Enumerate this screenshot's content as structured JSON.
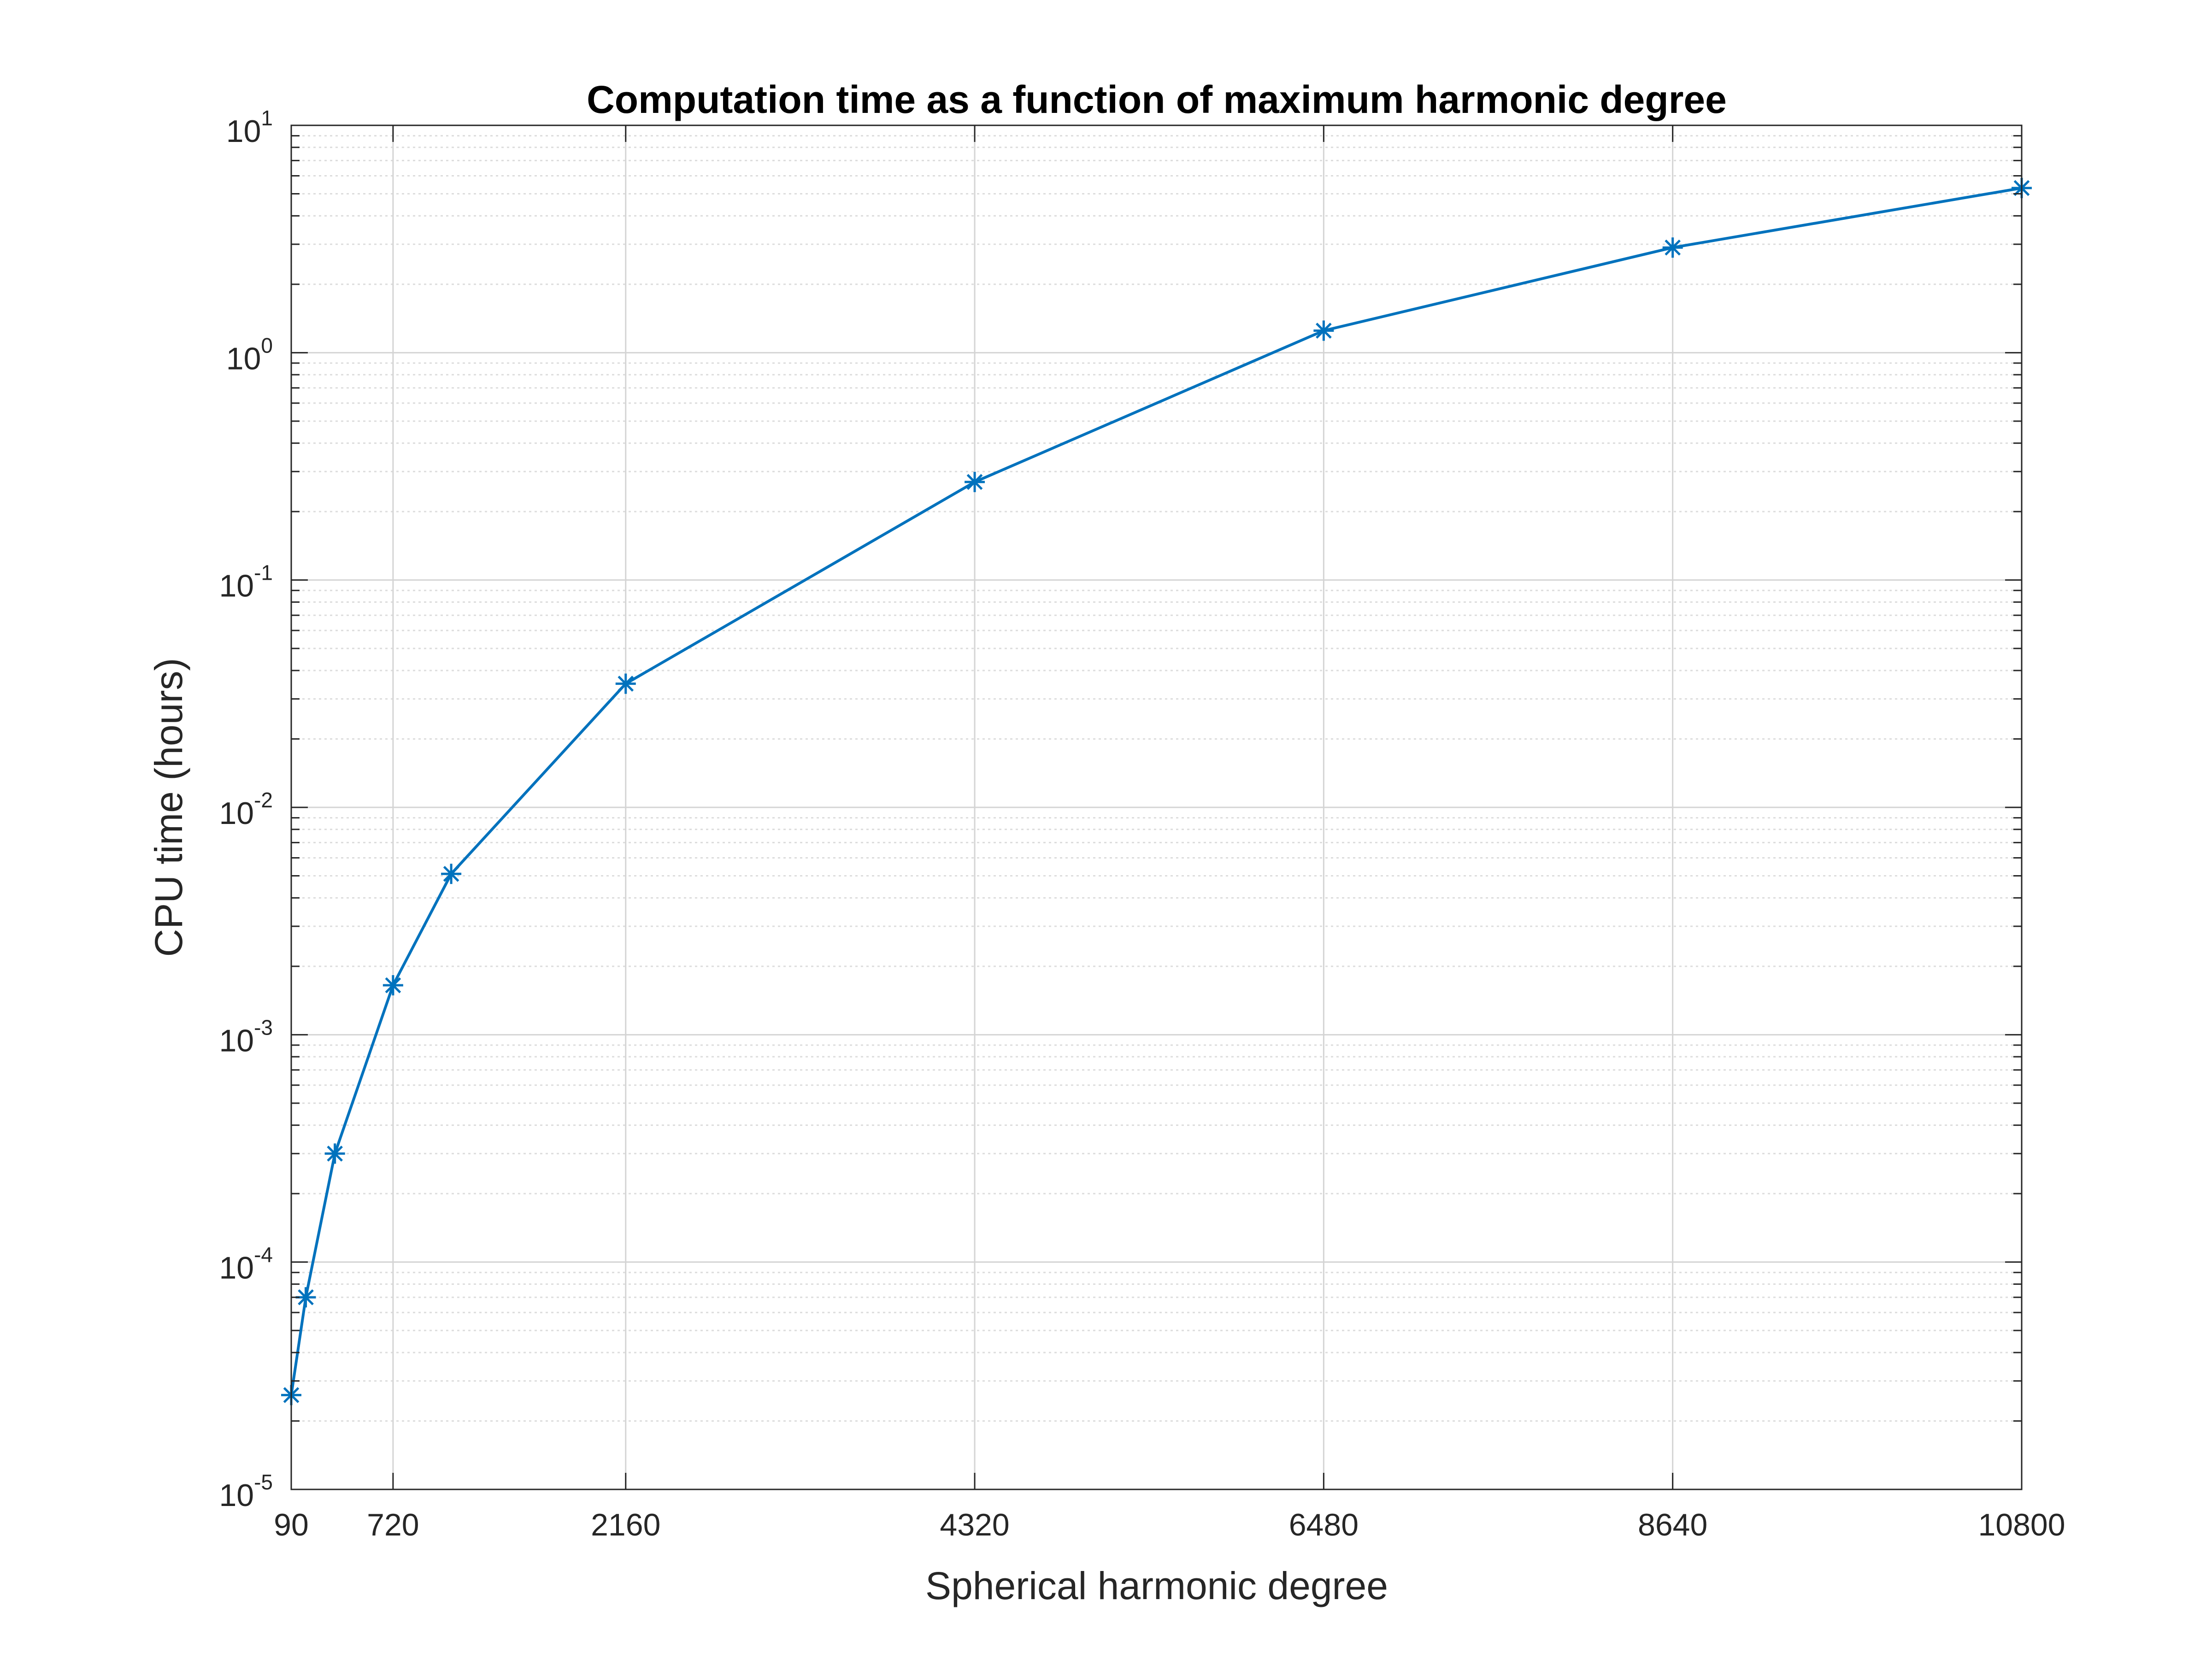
{
  "chart_data": {
    "type": "line",
    "title": "Computation time as a function of maximum harmonic degree",
    "xlabel": "Spherical harmonic degree",
    "ylabel": "CPU time (hours)",
    "x_scale": "linear",
    "y_scale": "log",
    "xlim": [
      90,
      10800
    ],
    "ylim": [
      1e-05,
      10
    ],
    "x_ticks": [
      90,
      720,
      2160,
      4320,
      6480,
      8640,
      10800
    ],
    "x_tick_labels": [
      "90",
      "720",
      "2160",
      "4320",
      "6480",
      "8640",
      "10800"
    ],
    "y_ticks": [
      1e-05,
      0.0001,
      0.001,
      0.01,
      0.1,
      1,
      10
    ],
    "y_tick_labels": [
      {
        "base": "10",
        "exp": "-5"
      },
      {
        "base": "10",
        "exp": "-4"
      },
      {
        "base": "10",
        "exp": "-3"
      },
      {
        "base": "10",
        "exp": "-2"
      },
      {
        "base": "10",
        "exp": "-1"
      },
      {
        "base": "10",
        "exp": "0"
      },
      {
        "base": "10",
        "exp": "1"
      }
    ],
    "grid": true,
    "minor_grid_y": true,
    "series": [
      {
        "color": "#0072BD",
        "marker": "asterisk",
        "x": [
          90,
          180,
          360,
          720,
          1080,
          2160,
          4320,
          6480,
          8640,
          10800
        ],
        "y": [
          2.6e-05,
          7e-05,
          0.0003,
          0.00165,
          0.0051,
          0.035,
          0.27,
          1.25,
          2.9,
          5.3
        ]
      }
    ]
  }
}
